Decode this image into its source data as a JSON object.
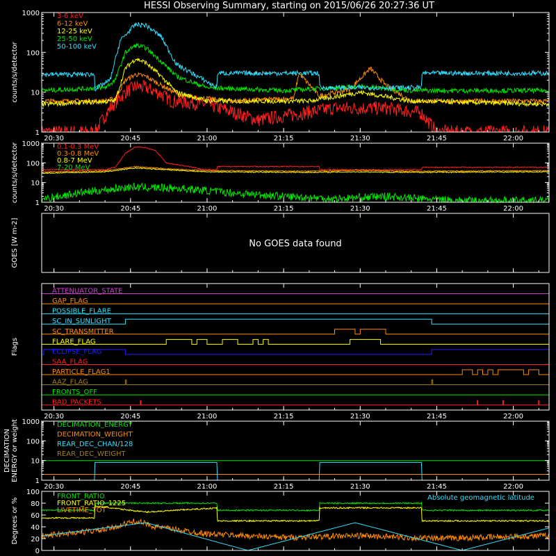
{
  "title": "HESSI Observing Summary, starting on 2015/06/26 20:27:36 UT",
  "time_ticks": [
    "20:30",
    "20:45",
    "21:00",
    "21:15",
    "21:30",
    "21:45",
    "22:00"
  ],
  "colors": {
    "white": "#ffffff",
    "red": "#ff2020",
    "orange": "#ff8c00",
    "yellow": "#ffff00",
    "green": "#00e600",
    "cyan": "#30e0ff",
    "magenta": "#d040d0",
    "blue": "#2020ff",
    "olive": "#a08020",
    "darkred": "#ff3030",
    "brightgreen": "#22ff22"
  },
  "chart_data": [
    {
      "type": "line",
      "panel": "lo_energy",
      "ylabel": "counts/s/detector",
      "yscale": "log",
      "ylim": [
        1,
        1000
      ],
      "y_ticks": [
        "1",
        "10",
        "100",
        "1000"
      ],
      "x_range": [
        "20:27:36",
        "22:07"
      ],
      "series": [
        {
          "name": "3-6 keV",
          "color": "#ff2020",
          "x": [
            "20:28",
            "20:38",
            "20:41",
            "20:44",
            "20:46",
            "20:48",
            "20:51",
            "20:53",
            "21:00",
            "21:10",
            "21:25",
            "21:35",
            "21:42",
            "21:45",
            "22:00",
            "22:07"
          ],
          "values": [
            1,
            1,
            4,
            10,
            14,
            13,
            9,
            6,
            5,
            2,
            4,
            4,
            3,
            1,
            1,
            1
          ]
        },
        {
          "name": "6-12 keV",
          "color": "#ff8c00",
          "x": [
            "20:28",
            "20:40",
            "20:42",
            "20:44",
            "20:46",
            "20:48",
            "20:51",
            "20:55",
            "21:05",
            "21:17",
            "21:18",
            "21:22",
            "21:28",
            "21:32",
            "21:35",
            "21:40",
            "22:07"
          ],
          "values": [
            6,
            6,
            7,
            20,
            28,
            25,
            15,
            8,
            6,
            7,
            30,
            8,
            12,
            40,
            15,
            6,
            6
          ]
        },
        {
          "name": "12-25 keV",
          "color": "#ffff00",
          "x": [
            "20:28",
            "20:42",
            "20:44",
            "20:46",
            "20:48",
            "20:51",
            "20:54",
            "21:00",
            "21:20",
            "21:30",
            "21:40",
            "22:07"
          ],
          "values": [
            5,
            6,
            40,
            70,
            55,
            25,
            10,
            6,
            6,
            10,
            6,
            5
          ]
        },
        {
          "name": "25-50 keV",
          "color": "#00e600",
          "x": [
            "20:28",
            "20:40",
            "20:42",
            "20:44",
            "20:46",
            "20:48",
            "20:51",
            "20:54",
            "21:00",
            "21:15",
            "21:30",
            "21:40",
            "22:07"
          ],
          "values": [
            11,
            13,
            20,
            100,
            150,
            130,
            60,
            25,
            13,
            11,
            14,
            11,
            11
          ]
        },
        {
          "name": "50-100 keV",
          "color": "#30e0ff",
          "x": [
            "20:28",
            "20:38",
            "20:38",
            "20:41",
            "20:43",
            "20:46",
            "20:48",
            "20:51",
            "20:54",
            "21:02",
            "21:02",
            "21:22",
            "21:22",
            "21:42",
            "21:42",
            "22:07"
          ],
          "values": [
            28,
            28,
            12,
            20,
            200,
            500,
            480,
            250,
            50,
            13,
            30,
            30,
            13,
            13,
            30,
            30
          ]
        }
      ]
    },
    {
      "type": "line",
      "panel": "hi_energy",
      "ylabel": "counts/s/detector",
      "yscale": "log",
      "ylim": [
        1,
        1000
      ],
      "y_ticks": [
        "1",
        "10",
        "100",
        "1000"
      ],
      "series": [
        {
          "name": "0.1-0.3 MeV",
          "color": "#ff2020",
          "x": [
            "20:28",
            "20:40",
            "20:42",
            "20:44",
            "20:46",
            "20:48",
            "20:50",
            "20:52",
            "21:00",
            "21:02",
            "21:02",
            "21:22",
            "21:22",
            "21:42",
            "21:42",
            "22:07"
          ],
          "values": [
            45,
            45,
            60,
            300,
            650,
            600,
            400,
            100,
            45,
            45,
            65,
            65,
            45,
            45,
            60,
            60
          ]
        },
        {
          "name": "0.3-0.8 MeV",
          "color": "#ff8c00",
          "x": [
            "20:28",
            "20:40",
            "20:46",
            "20:52",
            "21:00",
            "21:20",
            "21:30",
            "21:40",
            "22:07"
          ],
          "values": [
            35,
            40,
            65,
            50,
            40,
            38,
            42,
            38,
            40
          ]
        },
        {
          "name": "0.8-7 MeV",
          "color": "#ffff00",
          "x": [
            "20:28",
            "20:40",
            "20:46",
            "20:52",
            "21:00",
            "21:20",
            "21:30",
            "21:40",
            "22:07"
          ],
          "values": [
            30,
            35,
            55,
            45,
            35,
            33,
            35,
            33,
            35
          ]
        },
        {
          "name": "7-20 MeV",
          "color": "#00e600",
          "x": [
            "20:28",
            "20:35",
            "20:45",
            "20:55",
            "21:05",
            "21:15",
            "21:25",
            "21:35",
            "21:42",
            "21:50",
            "22:07"
          ],
          "values": [
            1.5,
            3,
            6,
            5,
            3,
            2,
            1.5,
            2,
            1.5,
            1.2,
            1.2
          ]
        }
      ]
    },
    {
      "type": "line",
      "panel": "goes",
      "ylabel": "GOES [W m-2]",
      "message": "No GOES data found"
    },
    {
      "type": "line",
      "panel": "flags",
      "ylabel": "Flags",
      "flags": [
        {
          "name": "ATTENUATOR_STATE",
          "color": "#d040d0",
          "segments": []
        },
        {
          "name": "GAP_FLAG",
          "color": "#ff8c00",
          "segments": []
        },
        {
          "name": "POSSIBLE_FLARE",
          "color": "#30e0ff",
          "segments": []
        },
        {
          "name": "SC_IN_SUNLIGHT",
          "color": "#30e0ff",
          "segments": [
            [
              "20:44",
              "21:44"
            ]
          ]
        },
        {
          "name": "SC_TRANSMITTER",
          "color": "#ff8c00",
          "segments": [
            [
              "21:25",
              "21:29"
            ],
            [
              "21:30",
              "21:35"
            ]
          ]
        },
        {
          "name": "FLARE_FLAG",
          "color": "#ffff00",
          "segments": [
            [
              "20:52",
              "20:57"
            ],
            [
              "20:58",
              "21:00"
            ],
            [
              "21:03",
              "21:06"
            ],
            [
              "21:09",
              "21:10"
            ],
            [
              "21:11",
              "21:12"
            ],
            [
              "21:28",
              "21:34"
            ]
          ]
        },
        {
          "name": "ECLIPSE_FLAG",
          "color": "#2020ff",
          "segments": [
            [
              "20:28",
              "20:44"
            ],
            [
              "21:44",
              "22:07"
            ]
          ]
        },
        {
          "name": "SAA_FLAG",
          "color": "#ff2020",
          "segments": []
        },
        {
          "name": "PARTICLE_FLAG1",
          "color": "#ff8c00",
          "segments": [
            [
              "21:50",
              "21:52"
            ],
            [
              "21:53",
              "21:54"
            ],
            [
              "21:55",
              "21:56"
            ],
            [
              "21:57",
              "22:02"
            ],
            [
              "22:03",
              "22:05"
            ]
          ]
        },
        {
          "name": "AAZ_FLAG",
          "color": "#a08020",
          "segments": [
            [
              "20:44",
              "20:44"
            ],
            [
              "21:44",
              "21:44"
            ]
          ]
        },
        {
          "name": "FRONTS_OFF",
          "color": "#00e600",
          "segments": []
        },
        {
          "name": "BAD_PACKETS",
          "color": "#ff2020",
          "spikes": [
            "20:47",
            "21:53",
            "21:58",
            "22:05"
          ]
        }
      ]
    },
    {
      "type": "line",
      "panel": "decimation",
      "ylabel": "DECIMATION ENERGY or weight",
      "yscale": "log",
      "ylim": [
        1,
        1000
      ],
      "y_ticks": [
        "1",
        "10",
        "100",
        "1000"
      ],
      "series": [
        {
          "name": "DECIMATION_ENERGY",
          "color": "#00e600",
          "x": [
            "20:28",
            "22:07"
          ],
          "values": [
            10,
            10
          ]
        },
        {
          "name": "DECIMATION_WEIGHT",
          "color": "#ff8c00",
          "x": [
            "20:28",
            "22:07"
          ],
          "values": [
            2,
            2
          ]
        },
        {
          "name": "REAR_DEC_CHAN/128",
          "color": "#30e0ff",
          "x": [
            "20:28",
            "20:38",
            "20:38",
            "21:02",
            "21:02",
            "21:22",
            "21:22",
            "21:42",
            "21:42",
            "22:07"
          ],
          "values": [
            1,
            1,
            8,
            8,
            1,
            1,
            8,
            8,
            1,
            1
          ]
        },
        {
          "name": "REAR_DEC_WEIGHT",
          "color": "#a08020",
          "x": [
            "20:28",
            "22:07"
          ],
          "values": [
            1,
            1
          ]
        }
      ]
    },
    {
      "type": "line",
      "panel": "ratio",
      "ylabel": "Degrees or %",
      "ylim": [
        0,
        100
      ],
      "y_ticks": [
        "0",
        "20",
        "40",
        "60",
        "80",
        "100"
      ],
      "annotation": "Absolute geomagnetic latitude",
      "series": [
        {
          "name": "FRONT_RATIO",
          "color": "#00e600",
          "x": [
            "20:28",
            "20:38",
            "20:38",
            "21:02",
            "21:02",
            "21:22",
            "21:22",
            "21:42",
            "21:42",
            "22:07"
          ],
          "values": [
            68,
            68,
            80,
            80,
            68,
            68,
            80,
            80,
            68,
            68
          ]
        },
        {
          "name": "FRONT_RATIO_1225",
          "color": "#ffff00",
          "x": [
            "20:28",
            "20:38",
            "20:38",
            "20:48",
            "21:02",
            "21:02",
            "21:22",
            "21:22",
            "21:42",
            "21:42",
            "22:07"
          ],
          "values": [
            55,
            55,
            75,
            65,
            72,
            50,
            50,
            72,
            72,
            50,
            50
          ]
        },
        {
          "name": "LIVETIME_TOT",
          "color": "#ff8c00",
          "x": [
            "20:28",
            "20:40",
            "20:46",
            "20:50",
            "21:00",
            "21:15",
            "21:30",
            "21:45",
            "22:07"
          ],
          "values": [
            25,
            35,
            50,
            40,
            28,
            22,
            25,
            20,
            25
          ]
        },
        {
          "name": "Absolute geomagnetic latitude",
          "color": "#30e0ff",
          "x": [
            "20:28",
            "20:48",
            "21:08",
            "21:29",
            "21:50",
            "22:07"
          ],
          "values": [
            25,
            47,
            0,
            47,
            0,
            38
          ]
        }
      ]
    }
  ]
}
